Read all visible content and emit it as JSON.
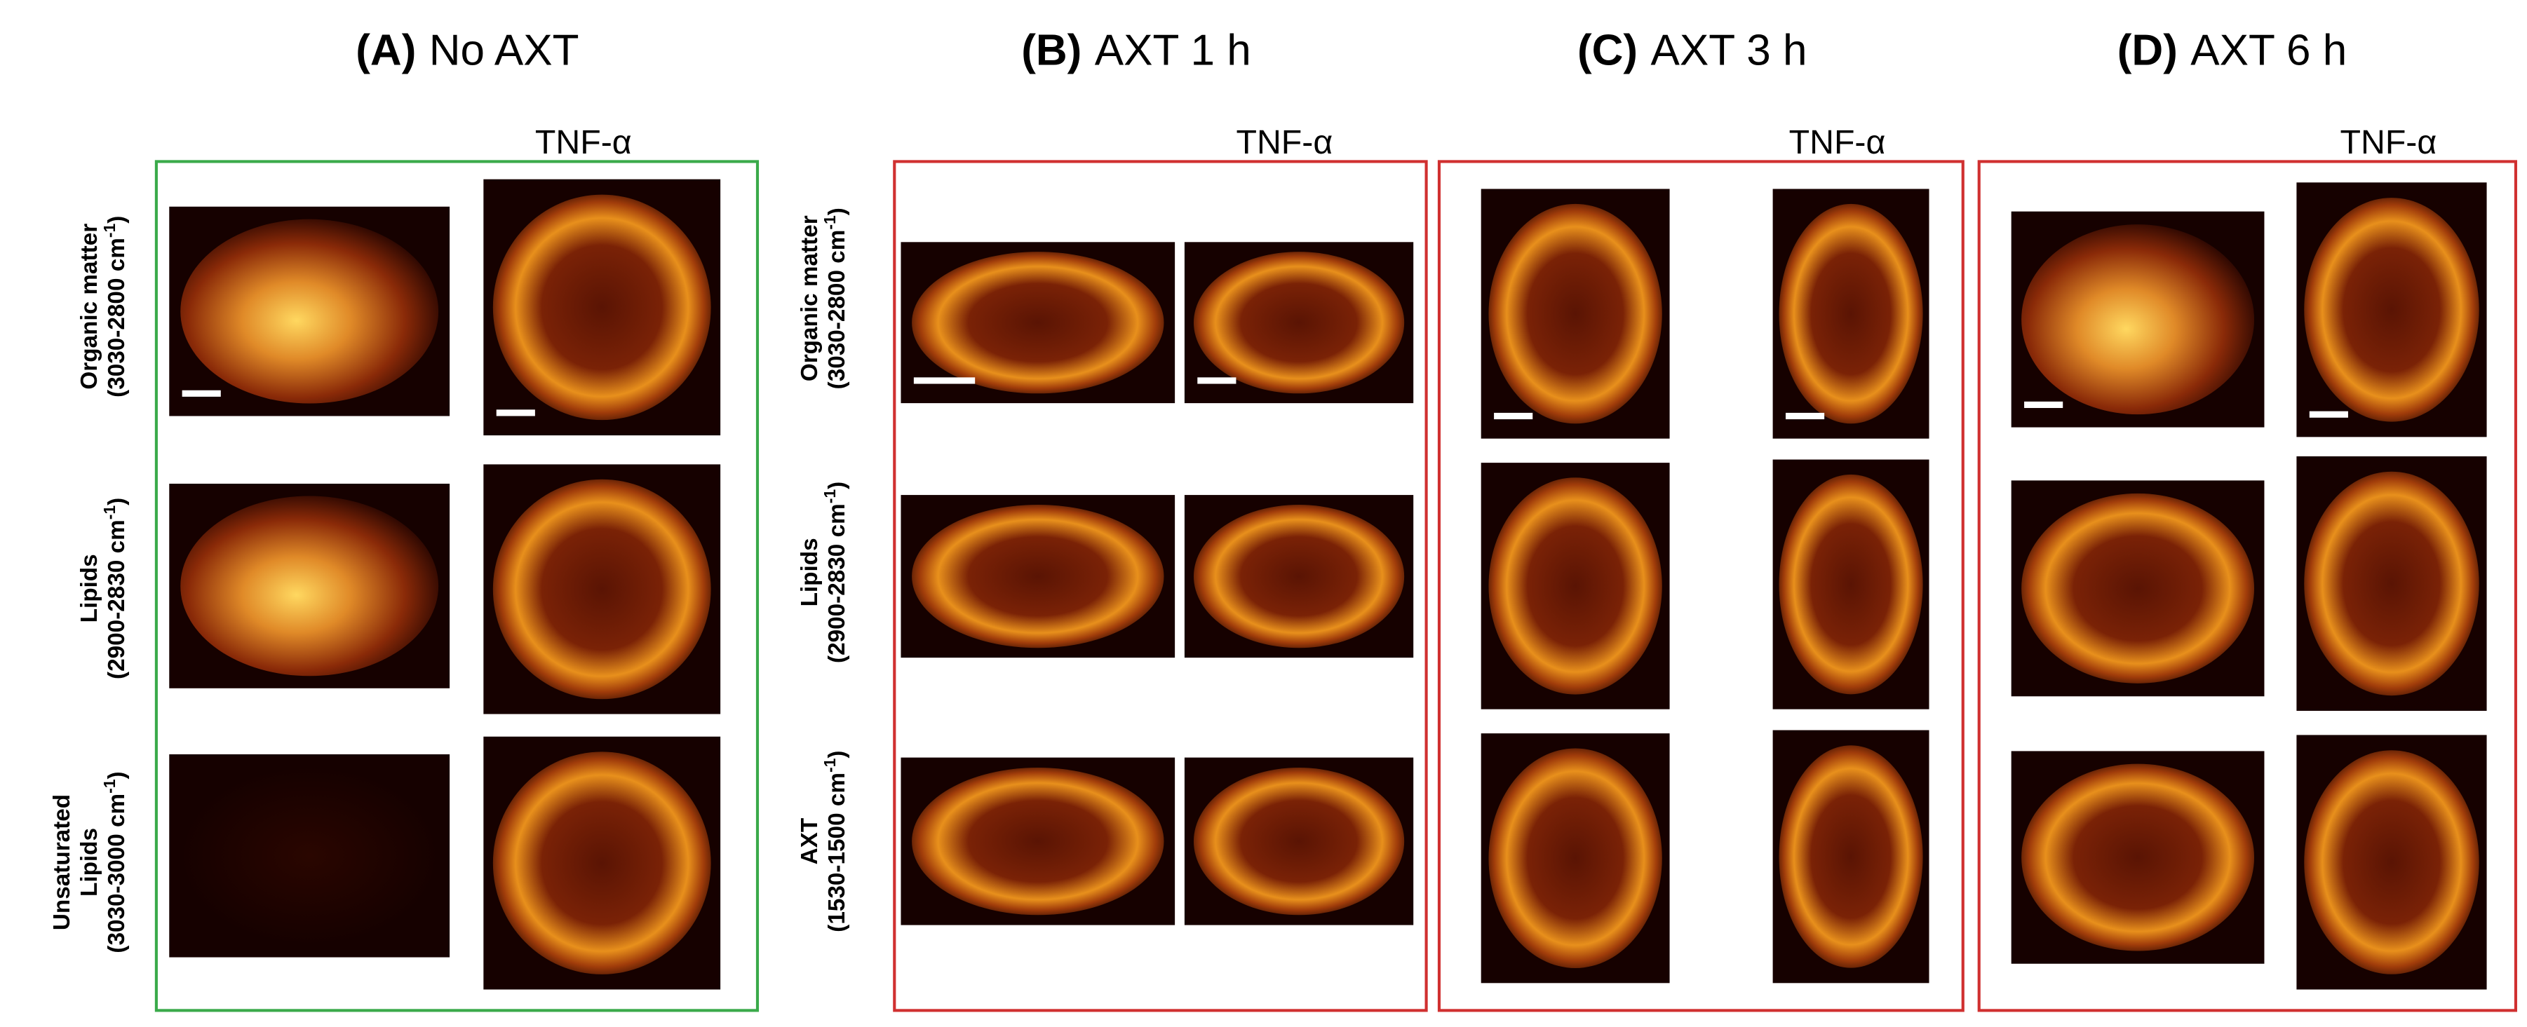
{
  "panels": [
    {
      "letter": "(A)",
      "title": "No  AXT",
      "tnf_label": "TNF-α"
    },
    {
      "letter": "(B)",
      "title": "AXT 1 h",
      "tnf_label": "TNF-α"
    },
    {
      "letter": "(C)",
      "title": "AXT 3 h",
      "tnf_label": "TNF-α"
    },
    {
      "letter": "(D)",
      "title": "AXT 6 h",
      "tnf_label": "TNF-α"
    }
  ],
  "row_labels_a": [
    {
      "lines": [
        "Organic matter"
      ],
      "range": "(3030-2800 cm",
      "exponent": "-1",
      "close": ")"
    },
    {
      "lines": [
        "Lipids"
      ],
      "range": "(2900-2830 cm",
      "exponent": "-1",
      "close": ")"
    },
    {
      "lines": [
        "Unsaturated",
        "Lipids"
      ],
      "range": "(3030-3000 cm",
      "exponent": "-1",
      "close": ")"
    }
  ],
  "row_labels_b": [
    {
      "lines": [
        "Organic matter"
      ],
      "range": "(3030-2800 cm",
      "exponent": "-1",
      "close": ")"
    },
    {
      "lines": [
        "Lipids"
      ],
      "range": "(2900-2830 cm",
      "exponent": "-1",
      "close": ")"
    },
    {
      "lines": [
        "AXT"
      ],
      "range": "(1530-1500 cm",
      "exponent": "-1",
      "close": ")"
    }
  ]
}
